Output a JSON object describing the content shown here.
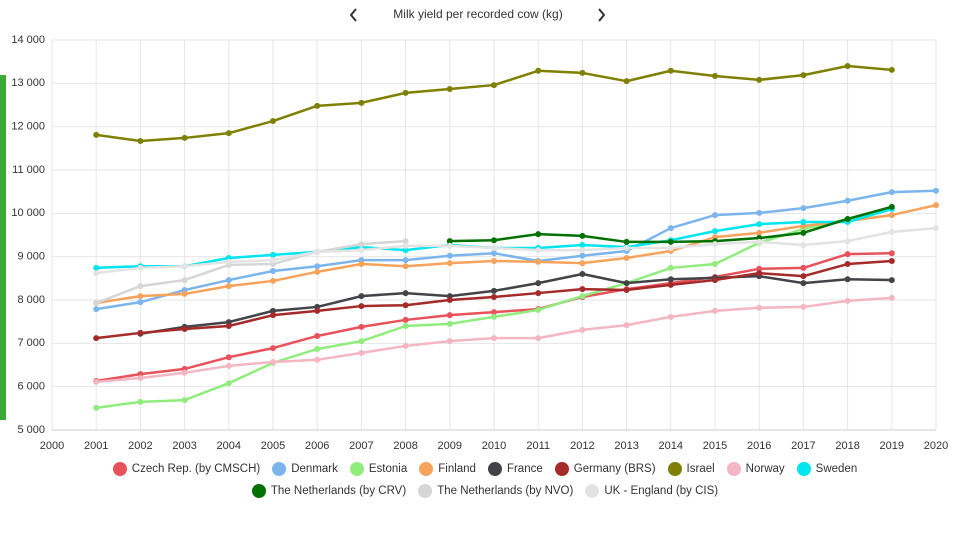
{
  "chart_data": {
    "type": "line",
    "title": "Milk yield per recorded cow (kg)",
    "x": [
      2001,
      2002,
      2003,
      2004,
      2005,
      2006,
      2007,
      2008,
      2009,
      2010,
      2011,
      2012,
      2013,
      2014,
      2015,
      2016,
      2017,
      2018,
      2019,
      2020
    ],
    "xlim": [
      2000,
      2020
    ],
    "xticks": [
      2000,
      2001,
      2002,
      2003,
      2004,
      2005,
      2006,
      2007,
      2008,
      2009,
      2010,
      2011,
      2012,
      2013,
      2014,
      2015,
      2016,
      2017,
      2018,
      2019,
      2020
    ],
    "ylim": [
      5000,
      14000
    ],
    "yticks": [
      {
        "value": 5000,
        "label": "5 000"
      },
      {
        "value": 6000,
        "label": "6 000"
      },
      {
        "value": 7000,
        "label": "7 000"
      },
      {
        "value": 8000,
        "label": "8 000"
      },
      {
        "value": 9000,
        "label": "9 000"
      },
      {
        "value": 10000,
        "label": "10 000"
      },
      {
        "value": 11000,
        "label": "11 000"
      },
      {
        "value": 12000,
        "label": "12 000"
      },
      {
        "value": 13000,
        "label": "13 000"
      },
      {
        "value": 14000,
        "label": "14 000"
      }
    ],
    "grid": true,
    "series": [
      {
        "name": "Czech Rep. (by CMSCH)",
        "color": "#e8525a",
        "values": [
          6130,
          6290,
          6410,
          6680,
          6890,
          7170,
          7380,
          7540,
          7650,
          7720,
          7790,
          8070,
          8250,
          8390,
          8530,
          8720,
          8740,
          9060,
          9080,
          null
        ]
      },
      {
        "name": "Denmark",
        "color": "#7cb5ec",
        "values": [
          7790,
          7950,
          8230,
          8460,
          8670,
          8780,
          8920,
          8920,
          9020,
          9080,
          8900,
          9020,
          9130,
          9660,
          9960,
          10010,
          10120,
          10290,
          10490,
          10520
        ]
      },
      {
        "name": "Estonia",
        "color": "#90ed7d",
        "values": [
          5510,
          5650,
          5690,
          6080,
          6550,
          6870,
          7050,
          7400,
          7450,
          7610,
          7770,
          8090,
          8390,
          8740,
          8830,
          9320,
          9640,
          9870,
          10120,
          null
        ]
      },
      {
        "name": "Finland",
        "color": "#f7a35c",
        "values": [
          7930,
          8090,
          8140,
          8320,
          8440,
          8650,
          8830,
          8780,
          8850,
          8900,
          8880,
          8850,
          8970,
          9130,
          9450,
          9550,
          9710,
          9820,
          9960,
          10190
        ]
      },
      {
        "name": "France",
        "color": "#434348",
        "values": [
          null,
          7220,
          7380,
          7490,
          7750,
          7840,
          8090,
          8160,
          8090,
          8210,
          8390,
          8600,
          8390,
          8480,
          8510,
          8550,
          8390,
          8480,
          8460,
          null
        ]
      },
      {
        "name": "Germany (BRS)",
        "color": "#a52a2a",
        "values": [
          7120,
          7240,
          7330,
          7400,
          7650,
          7750,
          7860,
          7880,
          8000,
          8070,
          8160,
          8250,
          8230,
          8350,
          8460,
          8620,
          8550,
          8830,
          8900,
          null
        ]
      },
      {
        "name": "Israel",
        "color": "#808000",
        "values": [
          11810,
          11670,
          11740,
          11850,
          12130,
          12480,
          12550,
          12780,
          12870,
          12960,
          13290,
          13240,
          13050,
          13290,
          13170,
          13080,
          13190,
          13400,
          13310,
          null
        ]
      },
      {
        "name": "Norway",
        "color": "#f4b6c2",
        "values": [
          6110,
          6200,
          6320,
          6480,
          6570,
          6620,
          6780,
          6940,
          7050,
          7120,
          7120,
          7310,
          7420,
          7610,
          7750,
          7820,
          7840,
          7980,
          8050,
          null
        ]
      },
      {
        "name": "Sweden",
        "color": "#00e5ee",
        "values": [
          8740,
          8780,
          8780,
          8970,
          9040,
          9110,
          9220,
          9150,
          9270,
          9200,
          9200,
          9270,
          9220,
          9380,
          9590,
          9750,
          9800,
          9800,
          10100,
          null
        ]
      },
      {
        "name": "The Netherlands (by CRV)",
        "color": "#007000",
        "values": [
          null,
          null,
          null,
          null,
          null,
          null,
          null,
          null,
          9360,
          9380,
          9520,
          9480,
          9340,
          9340,
          9360,
          9430,
          9550,
          9870,
          10150,
          null
        ]
      },
      {
        "name": "The Netherlands (by NVO)",
        "color": "#d6d6d6",
        "values": [
          7930,
          8320,
          8460,
          8810,
          8830,
          9110,
          9290,
          9360,
          null,
          null,
          null,
          null,
          null,
          null,
          null,
          null,
          null,
          null,
          null,
          null
        ]
      },
      {
        "name": "UK - England (by CIS)",
        "color": "#e3e3e3",
        "values": [
          8620,
          8740,
          8780,
          8880,
          8920,
          9110,
          9150,
          9250,
          9250,
          9200,
          9150,
          9150,
          9200,
          9200,
          9290,
          9340,
          9270,
          9360,
          9570,
          9660
        ]
      }
    ]
  }
}
